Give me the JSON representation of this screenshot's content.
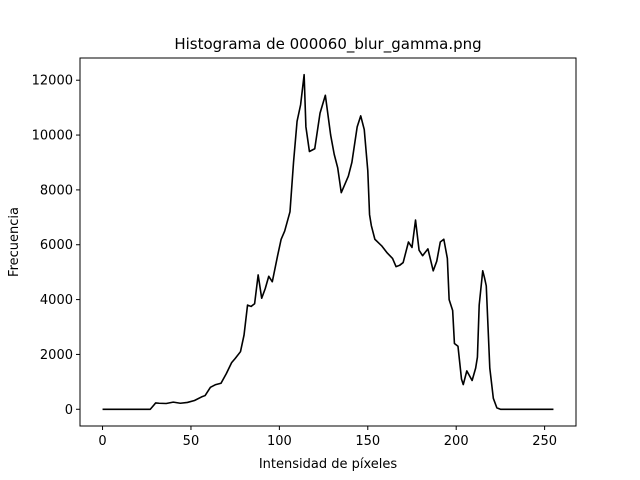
{
  "chart_data": {
    "type": "line",
    "title": "Histograma de 000060_blur_gamma.png",
    "x_label": "Intensidad de píxeles",
    "y_label": "Frecuencia",
    "x": [
      0,
      27,
      29,
      30,
      32,
      36,
      40,
      44,
      48,
      52,
      56,
      58,
      61,
      64,
      67,
      70,
      73,
      75,
      78,
      80,
      82,
      84,
      86,
      88,
      90,
      92,
      94,
      96,
      99,
      101,
      103,
      106,
      108,
      110,
      112,
      114,
      115,
      117,
      120,
      123,
      126,
      129,
      131,
      133,
      135,
      137,
      139,
      141,
      144,
      146,
      148,
      150,
      151,
      152,
      154,
      158,
      161,
      164,
      166,
      168,
      170,
      173,
      175,
      177,
      179,
      181,
      184,
      187,
      189,
      191,
      193,
      195,
      196,
      198,
      199,
      201,
      203,
      204,
      206,
      209,
      211,
      212,
      213,
      215,
      216,
      217,
      218,
      219,
      221,
      223,
      225,
      255
    ],
    "series": [
      {
        "name": "Frecuencia",
        "color": "#000000",
        "values": [
          0,
          0,
          150,
          230,
          220,
          210,
          260,
          220,
          250,
          320,
          450,
          500,
          800,
          900,
          950,
          1300,
          1700,
          1850,
          2100,
          2700,
          3800,
          3750,
          3850,
          4900,
          4050,
          4400,
          4850,
          4650,
          5600,
          6200,
          6500,
          7200,
          9000,
          10500,
          11100,
          12200,
          10300,
          9400,
          9500,
          10800,
          11450,
          10000,
          9300,
          8800,
          7900,
          8200,
          8500,
          9000,
          10300,
          10700,
          10200,
          8700,
          7100,
          6700,
          6200,
          5950,
          5700,
          5500,
          5200,
          5250,
          5350,
          6100,
          5900,
          6900,
          5800,
          5600,
          5850,
          5050,
          5400,
          6100,
          6200,
          5500,
          4000,
          3600,
          2400,
          2300,
          1100,
          900,
          1400,
          1050,
          1500,
          1900,
          3800,
          5050,
          4800,
          4500,
          3000,
          1500,
          400,
          50,
          0,
          0
        ]
      }
    ],
    "xlim": [
      -12.75,
      267.75
    ],
    "ylim": [
      -610,
      12810
    ],
    "xticks": [
      0,
      50,
      100,
      150,
      200,
      250
    ],
    "yticks": [
      0,
      2000,
      4000,
      6000,
      8000,
      10000,
      12000
    ],
    "grid": false
  }
}
